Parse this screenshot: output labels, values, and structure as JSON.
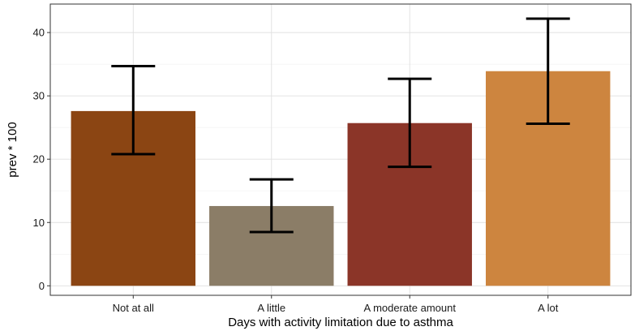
{
  "chart_data": {
    "type": "bar",
    "title": "",
    "xlabel": "Days with activity limitation due to asthma",
    "ylabel": "prev * 100",
    "categories": [
      "Not at all",
      "A little",
      "A moderate amount",
      "A lot"
    ],
    "values": [
      27.6,
      12.6,
      25.7,
      33.9
    ],
    "error_low": [
      20.8,
      8.5,
      18.8,
      25.6
    ],
    "error_high": [
      34.7,
      16.8,
      32.7,
      42.2
    ],
    "colors": [
      "#8B4513",
      "#8B7D67",
      "#8B3528",
      "#CD853F"
    ],
    "ylim": [
      -1.5,
      44.5
    ],
    "yticks": [
      0,
      10,
      20,
      30,
      40
    ],
    "grid": true
  }
}
